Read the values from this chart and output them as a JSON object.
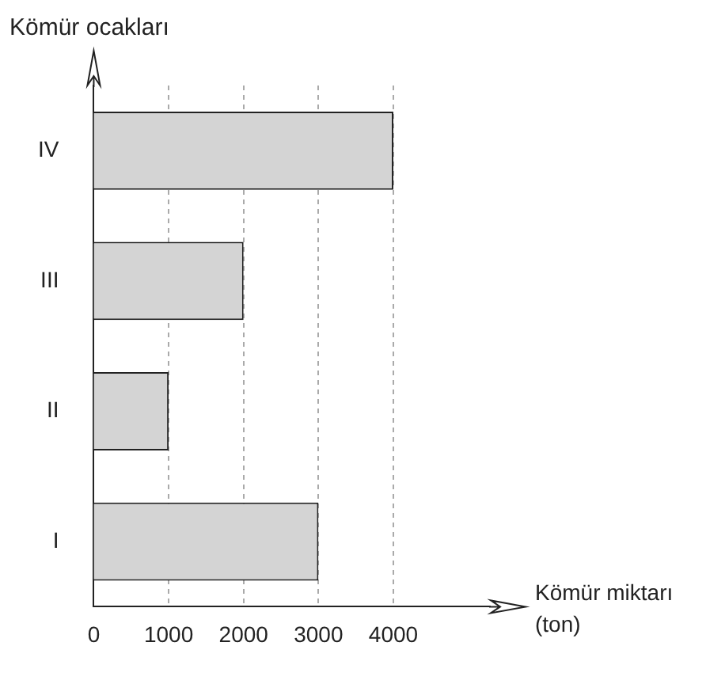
{
  "chart_data": {
    "type": "bar",
    "orientation": "horizontal",
    "ylabel": "Kömür ocakları",
    "xlabel": "Kömür miktarı (ton)",
    "categories": [
      "IV",
      "III",
      "II",
      "I"
    ],
    "values": [
      4000,
      2000,
      1000,
      3000
    ],
    "color": "#d4d4d4",
    "xlim": [
      0,
      5300
    ],
    "xticks": [
      0,
      1000,
      2000,
      3000,
      4000
    ],
    "grid": "x",
    "line_style": "dashed",
    "legend": false
  }
}
